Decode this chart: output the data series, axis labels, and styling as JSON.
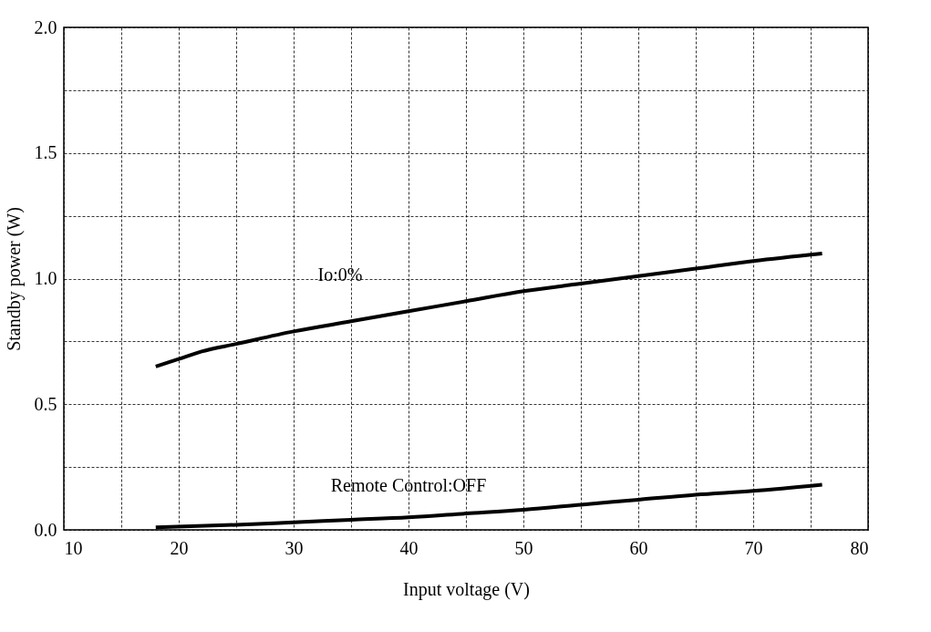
{
  "chart_data": {
    "type": "line",
    "xlabel": "Input voltage (V)",
    "ylabel": "Standby power (W)",
    "xlim": [
      10,
      80
    ],
    "ylim": [
      0,
      2
    ],
    "xticks": [
      10,
      {
        "value": 15,
        "label": null
      },
      20,
      {
        "value": 25,
        "label": null
      },
      30,
      {
        "value": 35,
        "label": null
      },
      40,
      {
        "value": 45,
        "label": null
      },
      50,
      {
        "value": 55,
        "label": null
      },
      60,
      {
        "value": 65,
        "label": null
      },
      70,
      {
        "value": 75,
        "label": null
      },
      80
    ],
    "yticks": [
      {
        "value": 0,
        "label": "0.0"
      },
      {
        "value": 0.25,
        "label": null
      },
      {
        "value": 0.5,
        "label": "0.5"
      },
      {
        "value": 0.75,
        "label": null
      },
      {
        "value": 1,
        "label": "1.0"
      },
      {
        "value": 1.25,
        "label": null
      },
      {
        "value": 1.5,
        "label": "1.5"
      },
      {
        "value": 1.75,
        "label": null
      },
      {
        "value": 2,
        "label": "2.0"
      }
    ],
    "grid": true,
    "line_style": "solid",
    "marker": "none",
    "series": [
      {
        "name": "Io:0%",
        "color": "#000000",
        "x": [
          18,
          20,
          22,
          25,
          30,
          35,
          40,
          45,
          50,
          55,
          60,
          65,
          70,
          76
        ],
        "values": [
          0.65,
          0.68,
          0.71,
          0.74,
          0.79,
          0.83,
          0.87,
          0.91,
          0.95,
          0.98,
          1.01,
          1.04,
          1.07,
          1.1
        ]
      },
      {
        "name": "Remote Control:OFF",
        "color": "#000000",
        "x": [
          18,
          25,
          30,
          35,
          40,
          45,
          50,
          55,
          60,
          65,
          70,
          76
        ],
        "values": [
          0.01,
          0.02,
          0.03,
          0.04,
          0.05,
          0.065,
          0.08,
          0.1,
          0.12,
          0.14,
          0.155,
          0.18
        ]
      }
    ]
  }
}
